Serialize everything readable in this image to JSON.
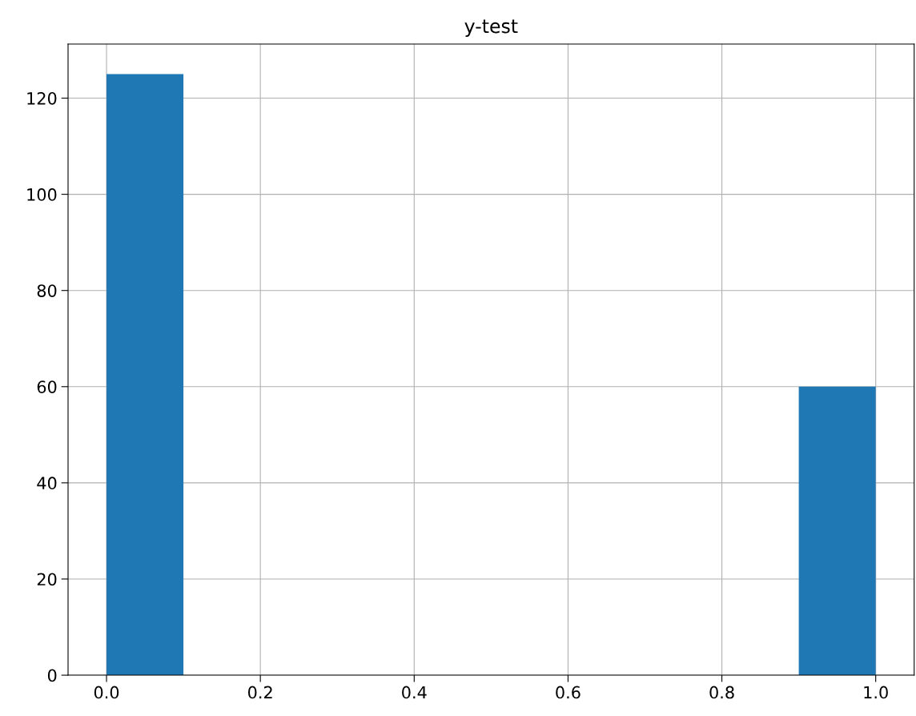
{
  "chart_data": {
    "type": "histogram",
    "title": "y-test",
    "bins": [
      0.0,
      0.1,
      0.2,
      0.3,
      0.4,
      0.5,
      0.6,
      0.7,
      0.8,
      0.9,
      1.0
    ],
    "values": [
      125,
      0,
      0,
      0,
      0,
      0,
      0,
      0,
      0,
      60
    ],
    "color": "#1f77b4",
    "xlim": [
      -0.05,
      1.05
    ],
    "xticks": [
      {
        "value": 0,
        "label": "0.0"
      },
      0.2,
      0.4,
      0.6,
      0.8,
      {
        "value": 1,
        "label": "1.0"
      }
    ],
    "ylim": [
      0,
      131.25
    ],
    "yticks": [
      0,
      20,
      40,
      60,
      80,
      100,
      120
    ],
    "grid": true
  }
}
